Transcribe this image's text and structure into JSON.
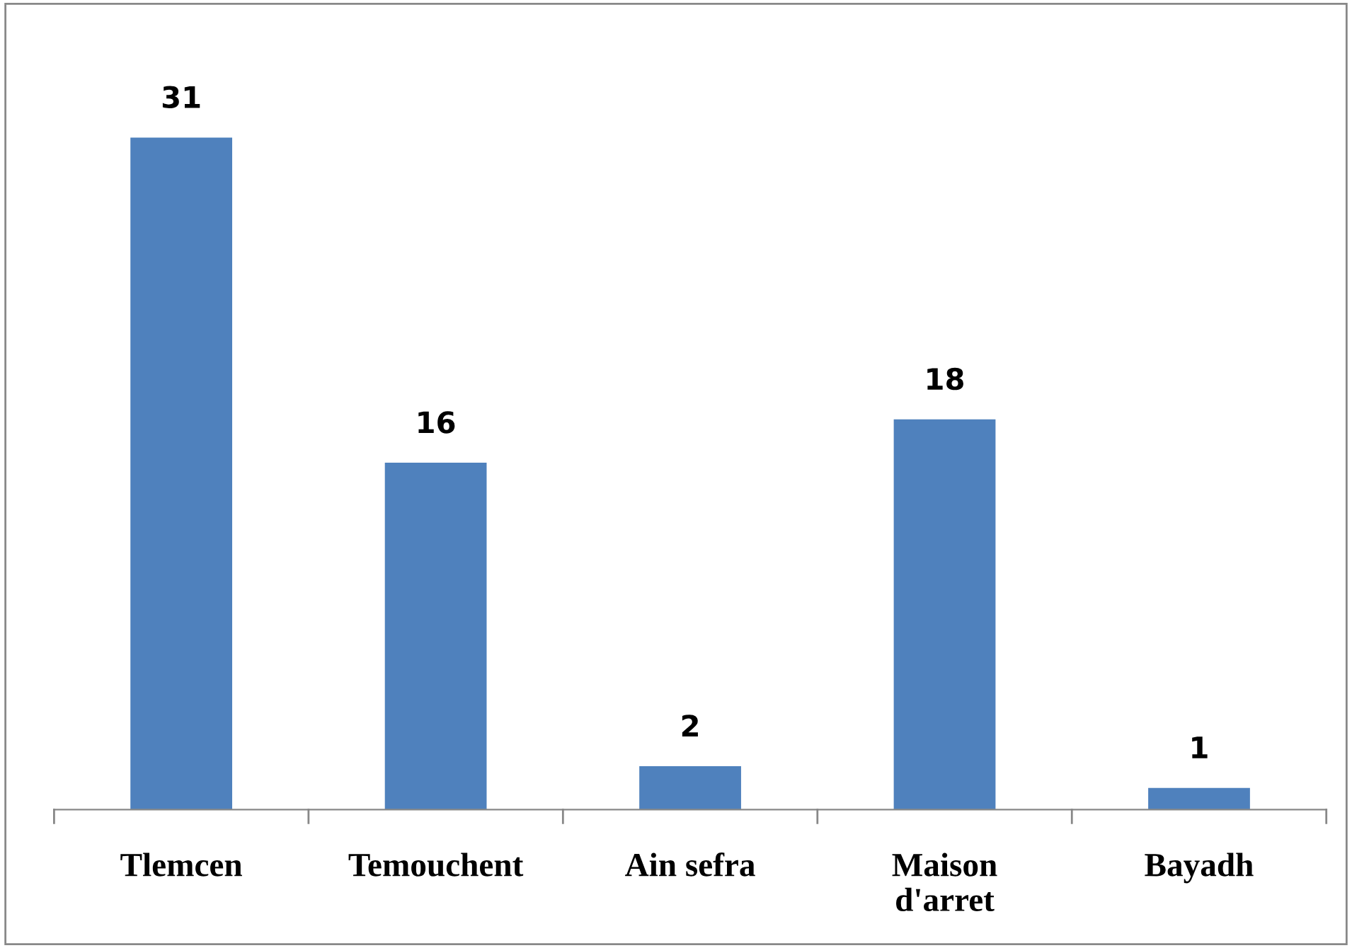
{
  "chart_data": {
    "type": "bar",
    "categories": [
      "Tlemcen",
      "Temouchent",
      "Ain sefra",
      "Maison d'arret",
      "Bayadh"
    ],
    "values": [
      31,
      16,
      2,
      18,
      1
    ],
    "color": "#4f81bd",
    "data_labels": true,
    "grid": false,
    "legend": false
  }
}
